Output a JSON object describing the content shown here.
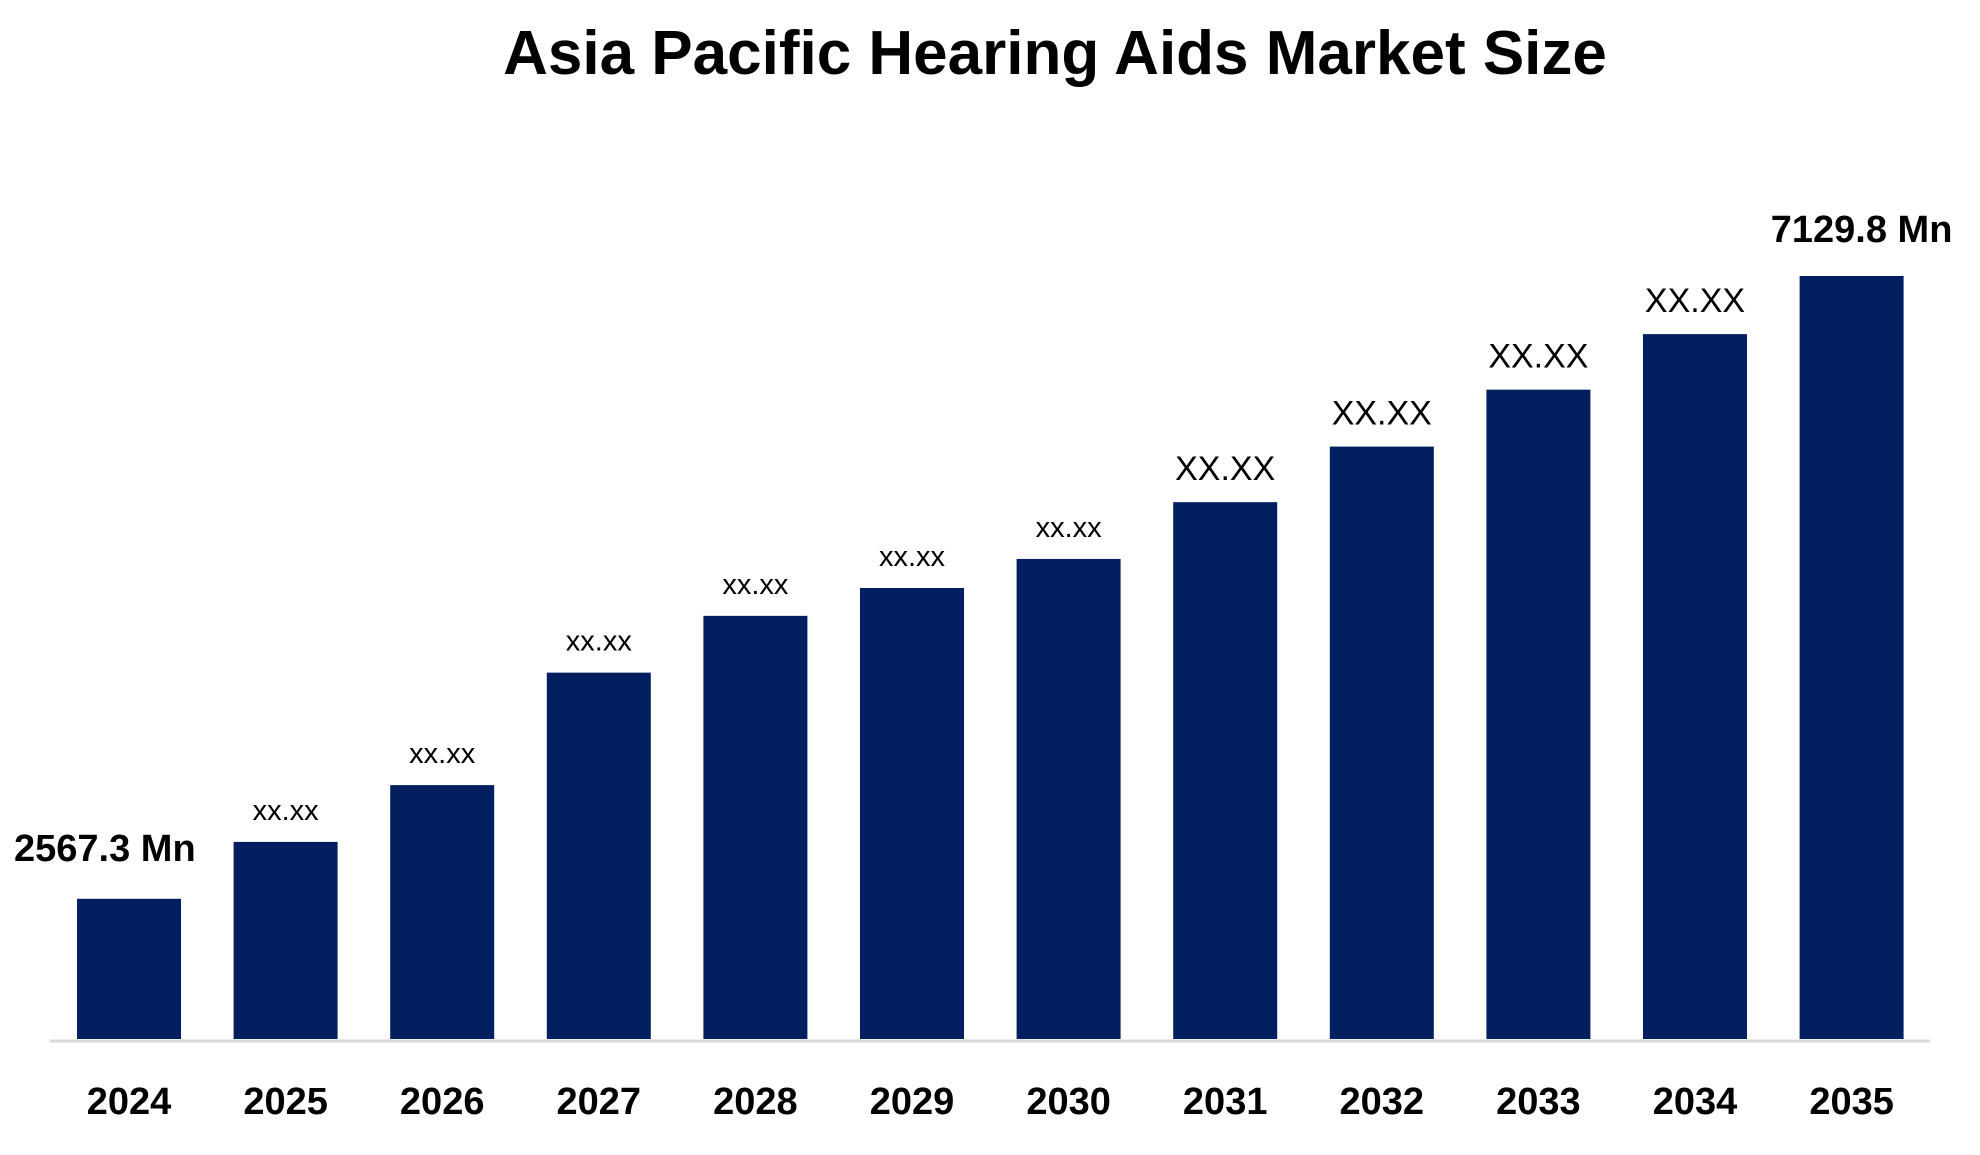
{
  "chart_data": {
    "type": "bar",
    "title": "Asia Pacific Hearing Aids Market Size",
    "xlabel": "",
    "ylabel": "",
    "categories": [
      "2024",
      "2025",
      "2026",
      "2027",
      "2028",
      "2029",
      "2030",
      "2031",
      "2032",
      "2033",
      "2034",
      "2035"
    ],
    "values": [
      2567.3,
      2984,
      3400,
      4224,
      4640,
      4844,
      5057,
      5473,
      5880,
      6297,
      6704,
      7129.8
    ],
    "data_labels": [
      "2567.3 Mn",
      "xx.xx",
      "xx.xx",
      "xx.xx",
      "xx.xx",
      "xx.xx",
      "xx.xx",
      "XX.XX",
      "XX.XX",
      "XX.XX",
      "XX.XX",
      "7129.8 Mn"
    ],
    "ylim": [
      1540,
      7129.8
    ],
    "y_axis_visible": false,
    "grid": false,
    "legend": "none",
    "bar_color": "#02205f",
    "axis_color": "#d9d9d9"
  }
}
